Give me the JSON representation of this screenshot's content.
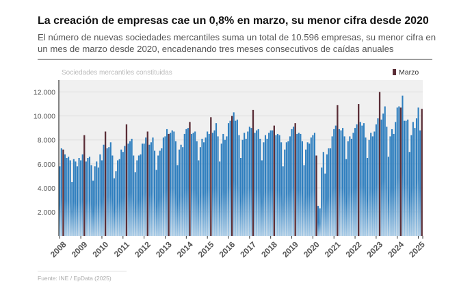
{
  "header": {
    "title": "La creación de empresas cae un 0,8% en marzo, su menor cifra desde 2020",
    "subtitle": "El número de nuevas sociedades mercantiles suma un total de 10.596 empresas, su menor cifra en un mes de marzo desde 2020, encadenando tres meses consecutivos de caídas anuales"
  },
  "footer": {
    "source": "Fuente: INE / EpData (2025)"
  },
  "colors": {
    "bar": "#2f7fbf",
    "bar_light": "#a9cbe6",
    "march": "#5a2d36",
    "plot_bg": "#f0f0f0",
    "grid": "#dcdcdc"
  },
  "chart_data": {
    "type": "bar",
    "title": "La creación de empresas cae un 0,8% en marzo, su menor cifra desde 2020",
    "ylabel": "Sociedades mercantiles constituidas",
    "legend": {
      "label": "Marzo",
      "position": "top-right"
    },
    "ylim": [
      0,
      13000
    ],
    "yticks": [
      2000,
      4000,
      6000,
      8000,
      10000,
      12000
    ],
    "ytick_labels": [
      "2.000",
      "4.000",
      "6.000",
      "8.000",
      "10.000",
      "12.000"
    ],
    "year_labels": [
      "2008",
      "2009",
      "2010",
      "2011",
      "2012",
      "2013",
      "2014",
      "2015",
      "2016",
      "2017",
      "2018",
      "2019",
      "2020",
      "2021",
      "2022",
      "2023",
      "2024",
      "2025"
    ],
    "march_values": [
      7200,
      8400,
      8700,
      9300,
      8700,
      8500,
      9500,
      9900,
      10000,
      10500,
      9200,
      9400,
      6700,
      10900,
      11000,
      12000,
      10700,
      10596
    ],
    "monthly_by_year": [
      [
        5800,
        7300,
        7200,
        6800,
        6500,
        6600,
        6300,
        4500,
        6400,
        6200,
        5800,
        6500
      ],
      [
        6300,
        6800,
        8400,
        6200,
        6500,
        6600,
        5900,
        4600,
        5800,
        6200,
        5700,
        6800
      ],
      [
        6300,
        7600,
        8700,
        7300,
        7400,
        7800,
        6700,
        4800,
        5400,
        6300,
        6400,
        7200
      ],
      [
        7000,
        7500,
        9300,
        7700,
        7900,
        8100,
        6700,
        5300,
        6300,
        6700,
        6800,
        7700
      ],
      [
        7700,
        8200,
        8700,
        7600,
        7800,
        8200,
        7100,
        5500,
        6700,
        7100,
        7300,
        8200
      ],
      [
        8300,
        8900,
        8500,
        8600,
        8800,
        8700,
        7900,
        5900,
        7200,
        7600,
        7400,
        8500
      ],
      [
        8900,
        9000,
        9500,
        8500,
        8600,
        8700,
        7900,
        6300,
        7400,
        8100,
        7800,
        8200
      ],
      [
        8700,
        8500,
        9900,
        8600,
        8800,
        9400,
        8300,
        6200,
        7700,
        8500,
        8000,
        8300
      ],
      [
        9400,
        9600,
        10000,
        10300,
        9600,
        9700,
        8400,
        6500,
        8000,
        8600,
        8100,
        8700
      ],
      [
        9100,
        9000,
        10500,
        8600,
        8800,
        8900,
        8100,
        6300,
        7800,
        8400,
        8100,
        8600
      ],
      [
        8800,
        8800,
        9200,
        8400,
        8500,
        8400,
        7800,
        5800,
        7200,
        7800,
        7900,
        8300
      ],
      [
        8900,
        9100,
        9400,
        8500,
        8600,
        8500,
        7900,
        5900,
        7200,
        7800,
        7700,
        8200
      ],
      [
        8400,
        8600,
        6700,
        2500,
        2300,
        5700,
        7000,
        5200,
        6800,
        7300,
        7300,
        8300
      ],
      [
        8900,
        9200,
        10900,
        8900,
        8800,
        9000,
        8300,
        6400,
        7900,
        8300,
        8100,
        8600
      ],
      [
        9000,
        9300,
        11000,
        9500,
        9200,
        9400,
        8200,
        6500,
        8000,
        8600,
        8300,
        8700
      ],
      [
        9300,
        9800,
        12000,
        9700,
        10200,
        10800,
        9100,
        6600,
        8300,
        8900,
        8500,
        9500
      ],
      [
        10700,
        10800,
        10700,
        11700,
        9600,
        9600,
        9700,
        7000,
        8400,
        9500,
        9000,
        9800
      ],
      [
        10700,
        8800,
        10596
      ]
    ]
  }
}
